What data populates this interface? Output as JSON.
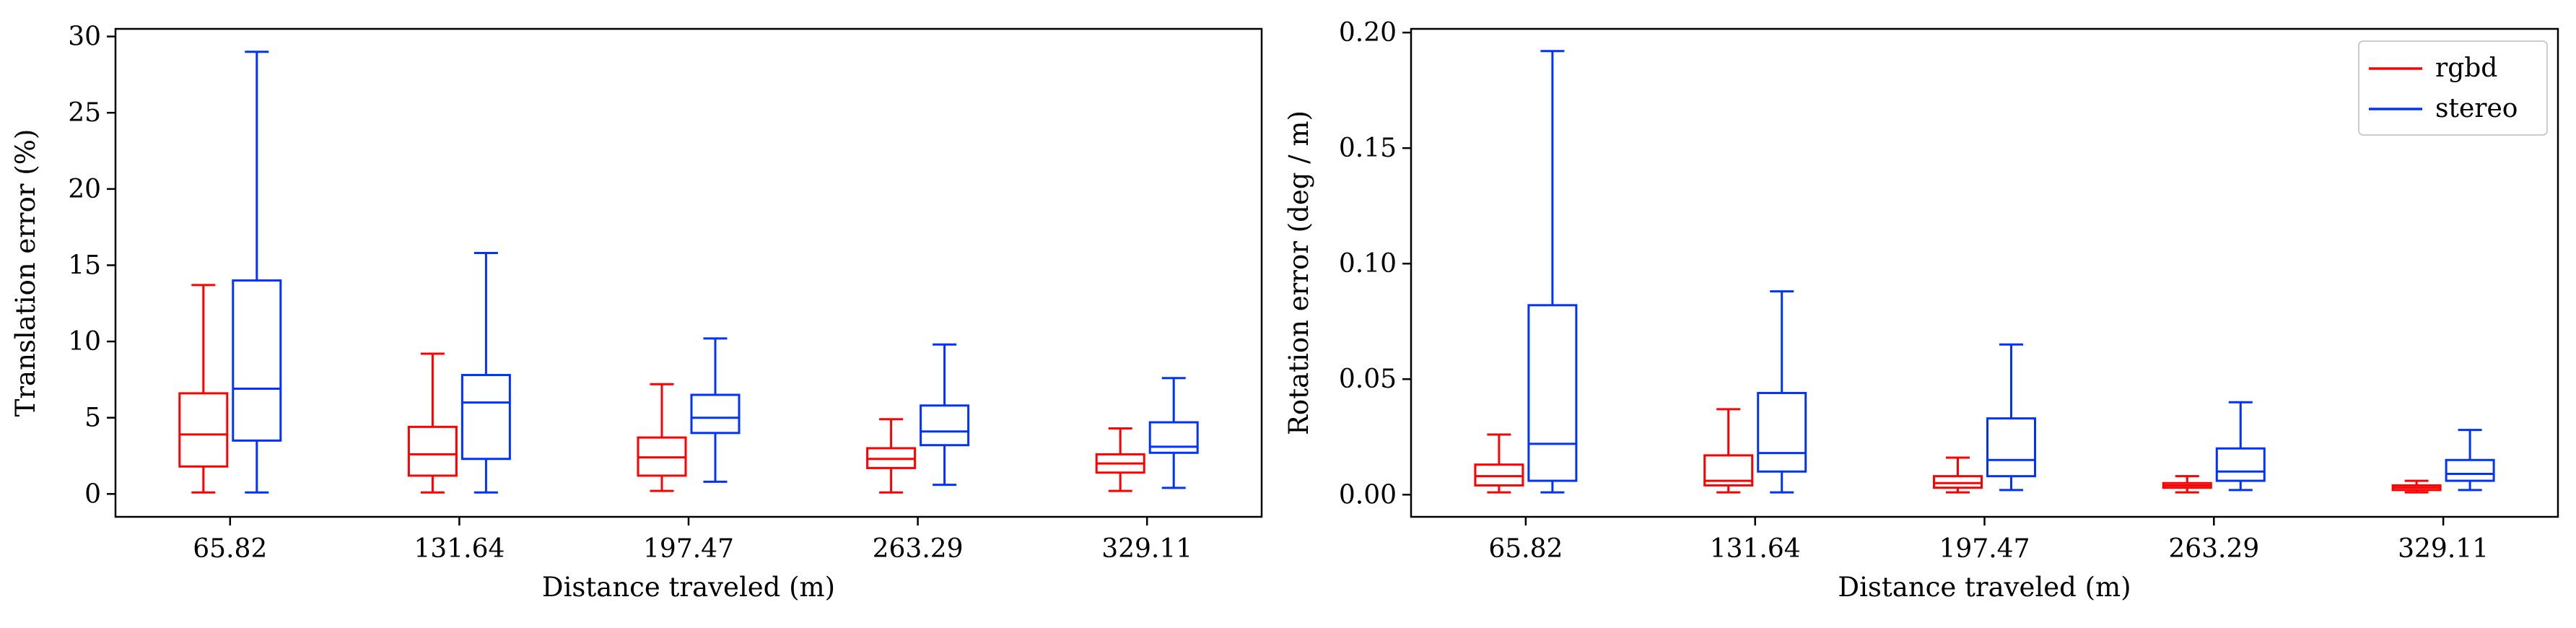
{
  "chart_data": [
    {
      "type": "box",
      "xlabel": "Distance traveled (m)",
      "ylabel": "Translation error (%)",
      "categories": [
        "65.82",
        "131.64",
        "197.47",
        "263.29",
        "329.11"
      ],
      "ylim": [
        -1.5,
        30.5
      ],
      "yticks": [
        0,
        5,
        10,
        15,
        20,
        25,
        30
      ],
      "ytick_labels": [
        "0",
        "5",
        "10",
        "15",
        "20",
        "25",
        "30"
      ],
      "grid": false,
      "series": [
        {
          "name": "rgbd",
          "color": "#ff0000",
          "boxes": [
            {
              "whislo": 0.1,
              "q1": 1.8,
              "med": 3.9,
              "q3": 6.6,
              "whishi": 13.7
            },
            {
              "whislo": 0.1,
              "q1": 1.2,
              "med": 2.6,
              "q3": 4.4,
              "whishi": 9.2
            },
            {
              "whislo": 0.2,
              "q1": 1.2,
              "med": 2.4,
              "q3": 3.7,
              "whishi": 7.2
            },
            {
              "whislo": 0.1,
              "q1": 1.7,
              "med": 2.3,
              "q3": 3.0,
              "whishi": 4.9
            },
            {
              "whislo": 0.2,
              "q1": 1.4,
              "med": 2.0,
              "q3": 2.6,
              "whishi": 4.3
            }
          ]
        },
        {
          "name": "stereo",
          "color": "#0033ff",
          "boxes": [
            {
              "whislo": 0.1,
              "q1": 3.5,
              "med": 6.9,
              "q3": 14.0,
              "whishi": 29.0
            },
            {
              "whislo": 0.1,
              "q1": 2.3,
              "med": 6.0,
              "q3": 7.8,
              "whishi": 15.8
            },
            {
              "whislo": 0.8,
              "q1": 4.0,
              "med": 5.0,
              "q3": 6.5,
              "whishi": 10.2
            },
            {
              "whislo": 0.6,
              "q1": 3.2,
              "med": 4.1,
              "q3": 5.8,
              "whishi": 9.8
            },
            {
              "whislo": 0.4,
              "q1": 2.7,
              "med": 3.1,
              "q3": 4.7,
              "whishi": 7.6
            }
          ]
        }
      ]
    },
    {
      "type": "box",
      "xlabel": "Distance traveled (m)",
      "ylabel": "Rotation error (deg / m)",
      "categories": [
        "65.82",
        "131.64",
        "197.47",
        "263.29",
        "329.11"
      ],
      "ylim": [
        -0.0096,
        0.2016
      ],
      "yticks": [
        0.0,
        0.05,
        0.1,
        0.15,
        0.2
      ],
      "ytick_labels": [
        "0.00",
        "0.05",
        "0.10",
        "0.15",
        "0.20"
      ],
      "grid": false,
      "legend": {
        "position": "top-right",
        "entries": [
          "rgbd",
          "stereo"
        ]
      },
      "series": [
        {
          "name": "rgbd",
          "color": "#ff0000",
          "boxes": [
            {
              "whislo": 0.001,
              "q1": 0.004,
              "med": 0.008,
              "q3": 0.013,
              "whishi": 0.026
            },
            {
              "whislo": 0.001,
              "q1": 0.004,
              "med": 0.006,
              "q3": 0.017,
              "whishi": 0.037
            },
            {
              "whislo": 0.001,
              "q1": 0.003,
              "med": 0.005,
              "q3": 0.008,
              "whishi": 0.016
            },
            {
              "whislo": 0.001,
              "q1": 0.003,
              "med": 0.004,
              "q3": 0.005,
              "whishi": 0.008
            },
            {
              "whislo": 0.001,
              "q1": 0.002,
              "med": 0.003,
              "q3": 0.004,
              "whishi": 0.006
            }
          ]
        },
        {
          "name": "stereo",
          "color": "#0033ff",
          "boxes": [
            {
              "whislo": 0.001,
              "q1": 0.006,
              "med": 0.022,
              "q3": 0.082,
              "whishi": 0.192
            },
            {
              "whislo": 0.001,
              "q1": 0.01,
              "med": 0.018,
              "q3": 0.044,
              "whishi": 0.088
            },
            {
              "whislo": 0.002,
              "q1": 0.008,
              "med": 0.015,
              "q3": 0.033,
              "whishi": 0.065
            },
            {
              "whislo": 0.002,
              "q1": 0.006,
              "med": 0.01,
              "q3": 0.02,
              "whishi": 0.04
            },
            {
              "whislo": 0.002,
              "q1": 0.006,
              "med": 0.009,
              "q3": 0.015,
              "whishi": 0.028
            }
          ]
        }
      ]
    }
  ]
}
